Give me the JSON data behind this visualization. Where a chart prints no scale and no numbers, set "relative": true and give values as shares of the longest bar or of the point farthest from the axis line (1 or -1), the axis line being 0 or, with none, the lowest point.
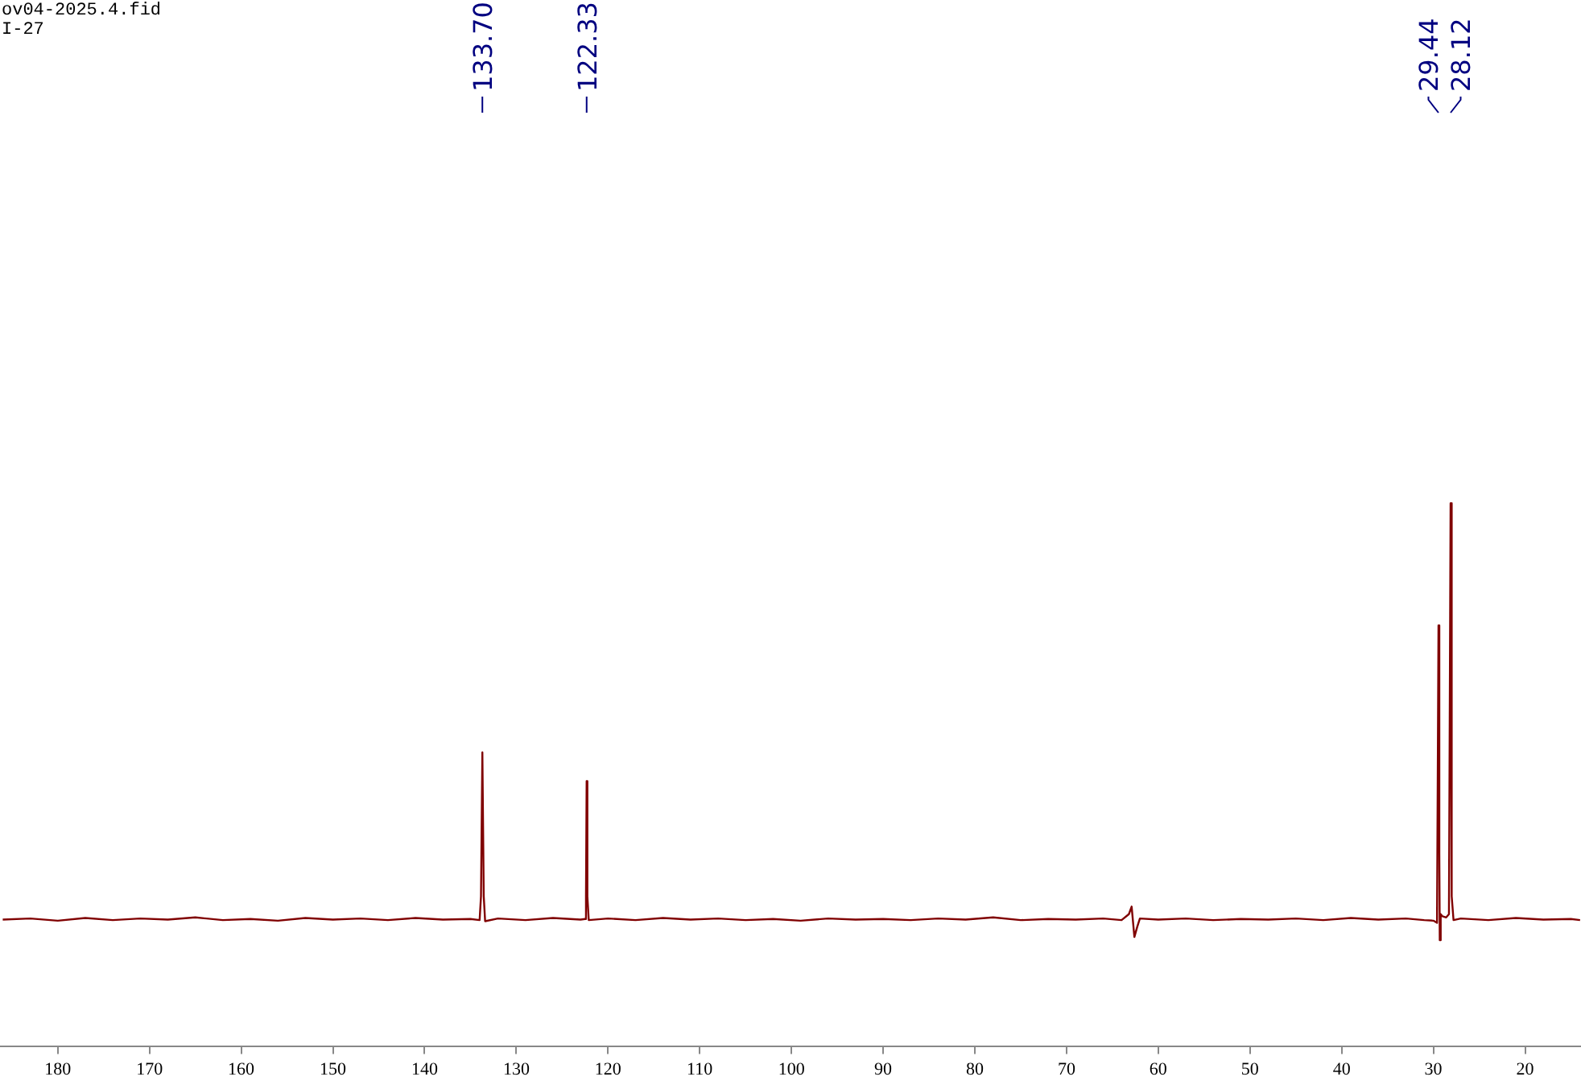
{
  "chart_data": {
    "type": "line",
    "relative": true,
    "color": "#800000",
    "marker": "none",
    "x": [
      186,
      183,
      180,
      177,
      174,
      171,
      168,
      165,
      162,
      159,
      156,
      153,
      150,
      147,
      144,
      141,
      138,
      135,
      134.0,
      133.85,
      133.7,
      133.55,
      133.4,
      132,
      129,
      126,
      123,
      122.5,
      122.4,
      122.33,
      122.25,
      122.1,
      120,
      117,
      114,
      111,
      108,
      105,
      102,
      99,
      96,
      93,
      90,
      87,
      84,
      81,
      78,
      75,
      72,
      69,
      66,
      64,
      63.2,
      62.9,
      62.6,
      62.3,
      62,
      60,
      57,
      54,
      51,
      48,
      45,
      42,
      39,
      36,
      33,
      31,
      30,
      29.6,
      29.44,
      29.35,
      29.3,
      29.2,
      29.0,
      28.6,
      28.3,
      28.12,
      28.0,
      27.8,
      27,
      24,
      21,
      18,
      15,
      14
    ],
    "values": [
      0.233,
      0.235,
      0.231,
      0.236,
      0.232,
      0.235,
      0.233,
      0.237,
      0.232,
      0.234,
      0.231,
      0.236,
      0.233,
      0.235,
      0.232,
      0.236,
      0.233,
      0.234,
      0.232,
      0.276,
      0.541,
      0.276,
      0.23,
      0.235,
      0.232,
      0.236,
      0.233,
      0.234,
      0.276,
      0.488,
      0.276,
      0.232,
      0.235,
      0.232,
      0.236,
      0.233,
      0.235,
      0.232,
      0.234,
      0.231,
      0.235,
      0.233,
      0.234,
      0.232,
      0.235,
      0.233,
      0.237,
      0.232,
      0.234,
      0.233,
      0.235,
      0.232,
      0.243,
      0.257,
      0.201,
      0.219,
      0.235,
      0.233,
      0.235,
      0.232,
      0.234,
      0.233,
      0.235,
      0.232,
      0.236,
      0.233,
      0.235,
      0.232,
      0.231,
      0.227,
      0.775,
      0.356,
      0.195,
      0.243,
      0.239,
      0.237,
      0.243,
      1,
      0.276,
      0.232,
      0.235,
      0.232,
      0.236,
      0.233,
      0.234,
      0.232
    ],
    "xlim": [
      186.3,
      13.9
    ],
    "xticks": [
      180,
      170,
      160,
      150,
      140,
      130,
      120,
      110,
      100,
      90,
      80,
      70,
      60,
      50,
      40,
      30,
      20
    ],
    "annotations": [
      "ov04-2025.4.fid",
      "I-27",
      {
        "text": "133.70",
        "x": 133.7
      },
      {
        "text": "122.33",
        "x": 122.33
      },
      {
        "text": "29.44",
        "x": 29.44
      },
      {
        "text": "28.12",
        "x": 28.12
      }
    ]
  }
}
